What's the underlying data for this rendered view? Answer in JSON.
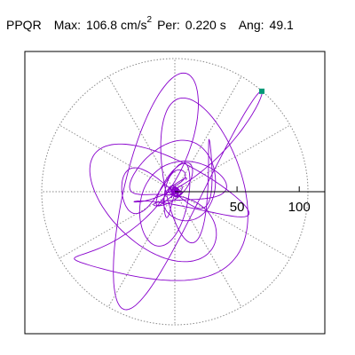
{
  "header": {
    "station": "PPQR",
    "max_label": "Max:",
    "max_value": "106.8",
    "max_unit_base": "cm/s",
    "max_unit_exp": "2",
    "per_label": "Per:",
    "per_value": "0.220 s",
    "ang_label": "Ang:",
    "ang_value": "49.1"
  },
  "colors": {
    "trace": "#8800cc",
    "marker": "#009977",
    "axis": "#000000",
    "grid": "#888888"
  },
  "chart_data": {
    "type": "polar-orbit",
    "radial_ticks": [
      50,
      100
    ],
    "radial_tick_labels": [
      "50",
      "100"
    ],
    "angular_grid_step_deg": 30,
    "rmax": 107,
    "grid": true,
    "peak_point": {
      "r": 106.8,
      "angle_deg": 49.1
    },
    "trace_seed": 7
  }
}
